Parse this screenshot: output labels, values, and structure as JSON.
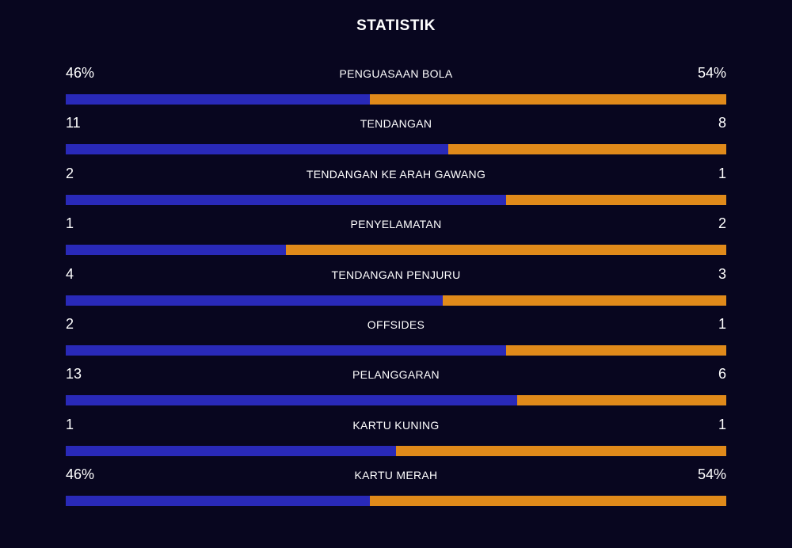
{
  "title": "STATISTIK",
  "colors": {
    "background": "#08061f",
    "home": "#2929b8",
    "away": "#e08a1a"
  },
  "chart_data": {
    "type": "bar",
    "title": "STATISTIK",
    "categories": [
      "PENGUASAAN BOLA",
      "TENDANGAN",
      "TENDANGAN KE ARAH GAWANG",
      "PENYELAMATAN",
      "TENDANGAN PENJURU",
      "OFFSIDES",
      "PELANGGARAN",
      "KARTU KUNING",
      "KARTU MERAH"
    ],
    "rows": [
      {
        "label": "PENGUASAAN BOLA",
        "left": "46%",
        "right": "54%",
        "left_share": 0.46
      },
      {
        "label": "TENDANGAN",
        "left": "11",
        "right": "8",
        "left_share": 0.579
      },
      {
        "label": "TENDANGAN KE ARAH GAWANG",
        "left": "2",
        "right": "1",
        "left_share": 0.667
      },
      {
        "label": "PENYELAMATAN",
        "left": "1",
        "right": "2",
        "left_share": 0.333
      },
      {
        "label": "TENDANGAN PENJURU",
        "left": "4",
        "right": "3",
        "left_share": 0.571
      },
      {
        "label": "OFFSIDES",
        "left": "2",
        "right": "1",
        "left_share": 0.667
      },
      {
        "label": "PELANGGARAN",
        "left": "13",
        "right": "6",
        "left_share": 0.684
      },
      {
        "label": "KARTU KUNING",
        "left": "1",
        "right": "1",
        "left_share": 0.5
      },
      {
        "label": "KARTU MERAH",
        "left": "46%",
        "right": "54%",
        "left_share": 0.46
      }
    ]
  }
}
